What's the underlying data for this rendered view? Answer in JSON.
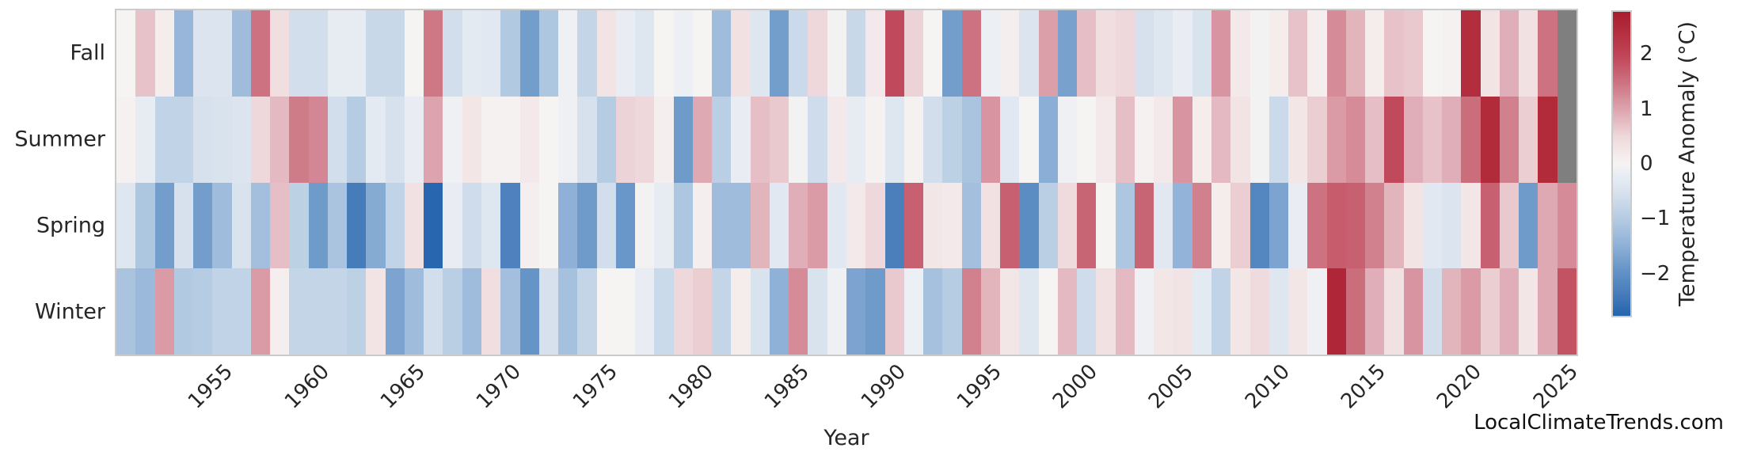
{
  "watermark": "LocalClimateTrends.com",
  "rows": [
    "Fall",
    "Summer",
    "Spring",
    "Winter"
  ],
  "x_ticks": [
    "1955",
    "1960",
    "1965",
    "1970",
    "1975",
    "1980",
    "1985",
    "1990",
    "1995",
    "2000",
    "2005",
    "2010",
    "2015",
    "2020",
    "2025"
  ],
  "colors": {
    "missing_cell": "#7f7f7f",
    "frame": "#cbcbcb",
    "text": "#262626",
    "background": "#ffffff",
    "colormap_anchors": [
      [
        2.8,
        "#a91d2e"
      ],
      [
        2.5,
        "#b12b3b"
      ],
      [
        2.0,
        "#bf4557"
      ],
      [
        1.5,
        "#cc7280"
      ],
      [
        1.0,
        "#dda4af"
      ],
      [
        0.5,
        "#eed8db"
      ],
      [
        0.15,
        "#f5ecec"
      ],
      [
        0.0,
        "#f6f3f3"
      ],
      [
        -0.15,
        "#eceff4"
      ],
      [
        -0.5,
        "#d9e3ee"
      ],
      [
        -1.0,
        "#b6cce3"
      ],
      [
        -1.5,
        "#8fb1d7"
      ],
      [
        -2.0,
        "#6191c5"
      ],
      [
        -2.4,
        "#477cba"
      ],
      [
        -2.8,
        "#2464ad"
      ]
    ]
  },
  "colorbar": {
    "label": "Temperature Anomaly (°C)",
    "ticks": [
      2,
      1,
      0,
      -1,
      -2
    ],
    "vmin": -2.8,
    "vmax": 2.8
  },
  "chart_data": {
    "type": "heatmap",
    "title": "",
    "xlabel": "Year",
    "ylabel": "",
    "colorbar_label": "Temperature Anomaly (°C)",
    "vmin": -2.8,
    "vmax": 2.8,
    "legend_position": "right-colorbar",
    "grid": false,
    "note": "null = missing data (gray cell); 2025 Fall and Summer not yet observed",
    "x": [
      1950,
      1951,
      1952,
      1953,
      1954,
      1955,
      1956,
      1957,
      1958,
      1959,
      1960,
      1961,
      1962,
      1963,
      1964,
      1965,
      1966,
      1967,
      1968,
      1969,
      1970,
      1971,
      1972,
      1973,
      1974,
      1975,
      1976,
      1977,
      1978,
      1979,
      1980,
      1981,
      1982,
      1983,
      1984,
      1985,
      1986,
      1987,
      1988,
      1989,
      1990,
      1991,
      1992,
      1993,
      1994,
      1995,
      1996,
      1997,
      1998,
      1999,
      2000,
      2001,
      2002,
      2003,
      2004,
      2005,
      2006,
      2007,
      2008,
      2009,
      2010,
      2011,
      2012,
      2013,
      2014,
      2015,
      2016,
      2017,
      2018,
      2019,
      2020,
      2021,
      2022,
      2023,
      2024,
      2025
    ],
    "categories_y": [
      "Fall",
      "Summer",
      "Spring",
      "Winter"
    ],
    "series": [
      {
        "name": "Fall",
        "values": [
          0,
          0.7,
          0.15,
          -1.4,
          -0.45,
          -0.45,
          -1.3,
          1.5,
          0.4,
          -0.6,
          -0.6,
          -0.25,
          -0.25,
          -0.75,
          -0.75,
          0,
          1.45,
          -0.6,
          -0.3,
          -0.35,
          -1.05,
          -1.8,
          -1.1,
          -0.1,
          -0.8,
          0.3,
          -0.2,
          -0.4,
          0,
          -0.15,
          0,
          -1.3,
          0.35,
          -0.4,
          -1.8,
          -0.7,
          0.5,
          -0.05,
          -0.75,
          0.2,
          1.95,
          0.55,
          0,
          -1.8,
          1.5,
          -0.15,
          0.1,
          -0.45,
          1.05,
          -1.75,
          0.75,
          0.4,
          0.5,
          -0.55,
          -0.4,
          -0.2,
          -0.5,
          1.15,
          0.2,
          -0.05,
          0.15,
          0.7,
          0.1,
          1.25,
          0.85,
          0.15,
          0.7,
          0.65,
          0,
          0.05,
          2.45,
          0.3,
          0.9,
          0.35,
          1.5,
          null
        ]
      },
      {
        "name": "Summer",
        "values": [
          0.05,
          -0.25,
          -0.85,
          -0.85,
          -0.55,
          -0.5,
          -0.45,
          0.5,
          0.8,
          1.4,
          1.3,
          -0.6,
          -1.0,
          -0.3,
          -0.55,
          -0.2,
          1.0,
          -0.1,
          0.25,
          0.05,
          0.05,
          0.2,
          0,
          -0.1,
          -0.55,
          -1.0,
          0.55,
          0.5,
          0.1,
          -1.85,
          0.95,
          -0.95,
          -0.2,
          0.75,
          0.65,
          -0.05,
          -0.65,
          0.2,
          -0.25,
          0.05,
          -0.4,
          0.05,
          -0.6,
          -0.9,
          -1.15,
          1.15,
          -0.35,
          0,
          -1.55,
          -0.1,
          0,
          0.2,
          0.75,
          0.05,
          0.2,
          1.15,
          0.15,
          0.8,
          0.3,
          -0.05,
          -0.7,
          0.25,
          0.6,
          1.1,
          1.25,
          0.75,
          1.95,
          0.9,
          0.7,
          0.9,
          1.55,
          2.5,
          1.35,
          0.6,
          2.5,
          null
        ]
      },
      {
        "name": "Spring",
        "values": [
          -0.4,
          -1.1,
          -1.8,
          -0.55,
          -1.8,
          -1.3,
          -0.5,
          -1.25,
          0.75,
          -0.9,
          -1.85,
          -1.15,
          -2.4,
          -1.6,
          -0.85,
          0.35,
          -2.75,
          -0.2,
          -0.65,
          -0.4,
          -2.3,
          0.1,
          0,
          -1.5,
          -1.85,
          -0.6,
          -1.9,
          -0.05,
          -0.25,
          -1.1,
          0.1,
          -1.3,
          -1.3,
          0.85,
          -0.35,
          0.9,
          1.1,
          -0.35,
          0.2,
          0.5,
          -2.35,
          1.7,
          0.25,
          0.2,
          -1.25,
          0.35,
          1.7,
          -2.1,
          -0.95,
          0.45,
          1.65,
          0,
          -1.1,
          1.65,
          -0.35,
          -1.45,
          1.35,
          0.15,
          0.6,
          -2.2,
          -1.7,
          -0.2,
          1.5,
          1.75,
          1.7,
          1.35,
          0.85,
          0.3,
          -0.35,
          -0.45,
          0.25,
          1.7,
          0.65,
          -1.85,
          0.95,
          1.25
        ]
      },
      {
        "name": "Winter",
        "values": [
          -1.15,
          -1.35,
          1.1,
          -1.05,
          -1.0,
          -0.85,
          -0.85,
          1.1,
          0.1,
          -0.8,
          -0.8,
          -0.8,
          -0.9,
          0.3,
          -1.7,
          -1.3,
          -0.6,
          -0.95,
          -1.3,
          0.4,
          -1.25,
          -1.95,
          -0.55,
          -1.2,
          -0.8,
          0,
          0,
          -0.2,
          -0.7,
          0.5,
          0.6,
          -0.8,
          0.15,
          -0.5,
          -1.5,
          1.25,
          -0.5,
          -0.1,
          -1.7,
          -1.85,
          0.65,
          -0.15,
          -1.2,
          -1.0,
          1.35,
          0.85,
          0.25,
          -0.4,
          0,
          0.8,
          -0.65,
          0.35,
          0.8,
          -0.1,
          0.25,
          0.3,
          -0.3,
          -0.85,
          0.25,
          0.45,
          -0.4,
          0.25,
          -0.1,
          2.6,
          1.55,
          0.9,
          0.35,
          1.15,
          -0.6,
          0.85,
          1.1,
          0.6,
          0.9,
          0.25,
          0.95,
          1.85
        ]
      }
    ]
  }
}
